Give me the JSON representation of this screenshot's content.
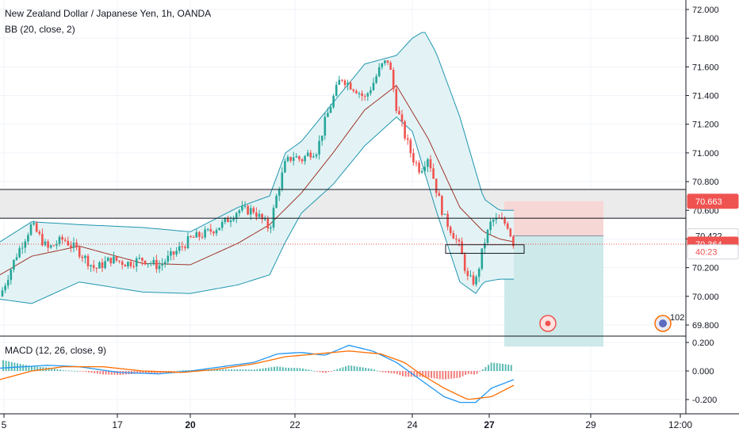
{
  "header": {
    "title": "New Zealand Dollar / Japanese Yen, 1h, OANDA",
    "indicator": "BB (20, close, 2)",
    "macd_label": "MACD (12, 26, close, 9)"
  },
  "colors": {
    "up": "#26a69a",
    "down": "#ef5350",
    "basis": "#a0352b",
    "band": "#2196b0",
    "band_fill": "#e3f3f5",
    "zone_fill": "#ebebeb",
    "short_stop_fill": "#f7d6d6",
    "short_target_fill": "#cde9e9",
    "macd_line": "#2196f3",
    "signal_line": "#ff6d00",
    "price_line": "#ef5350",
    "badge_red": "#ef5350",
    "badge_grey": "#8a8f9c"
  },
  "price_badges": [
    {
      "name": "stop-price-badge",
      "text": "70.663",
      "price": 70.663,
      "fill": "#ef5350",
      "color": "#ffffff"
    },
    {
      "name": "target-price-badge",
      "text": "70.422",
      "price": 70.422,
      "fill": "#ffffff",
      "color": "#131722"
    },
    {
      "name": "last-price-badge",
      "text": "70.364",
      "price": 70.364,
      "fill": "#ef5350",
      "color": "#ffffff"
    },
    {
      "name": "countdown-badge",
      "text": "40:23",
      "price": 70.31,
      "fill": "#ffffff",
      "color": "#ef5350"
    }
  ],
  "icon_label": "102",
  "chart_data": [
    {
      "type": "candlestick",
      "title": "New Zealand Dollar / Japanese Yen, 1h, OANDA",
      "indicator": "BB (20, close, 2)",
      "y_ticks": [
        "72.000",
        "71.800",
        "71.600",
        "71.400",
        "71.200",
        "71.000",
        "70.800",
        "70.600",
        "70.400",
        "70.200",
        "70.000",
        "69.800"
      ],
      "ylim": [
        69.64,
        72.05
      ],
      "x_ticks": [
        "5",
        "17",
        "20",
        "22",
        "24",
        "27",
        "29",
        "12:00"
      ],
      "last_price": 70.364,
      "series": [
        {
          "name": "price",
          "x": [
            0,
            20,
            40,
            60,
            80,
            100,
            120,
            140,
            160,
            180,
            200,
            220,
            240,
            260,
            280,
            300,
            320,
            340,
            350,
            360,
            370,
            380,
            390,
            400,
            410,
            420,
            430,
            440,
            450,
            460,
            470,
            480,
            490,
            500,
            510,
            520,
            530,
            540,
            550,
            560,
            570,
            580,
            590,
            600,
            610,
            620,
            630,
            640,
            648
          ],
          "values": [
            70.0,
            70.28,
            70.5,
            70.33,
            70.4,
            70.31,
            70.19,
            70.26,
            70.23,
            70.26,
            70.21,
            70.3,
            70.4,
            70.44,
            70.5,
            70.6,
            70.6,
            70.47,
            70.73,
            70.93,
            70.98,
            70.95,
            71.0,
            71.02,
            71.22,
            71.38,
            71.53,
            71.48,
            71.44,
            71.38,
            71.48,
            71.6,
            71.65,
            71.32,
            71.13,
            70.97,
            70.88,
            70.98,
            70.75,
            70.55,
            70.45,
            70.34,
            70.12,
            70.1,
            70.36,
            70.53,
            70.53,
            70.5,
            70.364
          ]
        },
        {
          "name": "basis",
          "x": [
            0,
            40,
            100,
            180,
            240,
            300,
            340,
            380,
            420,
            460,
            500,
            540,
            580,
            610,
            630,
            648
          ],
          "values": [
            70.15,
            70.28,
            70.35,
            70.23,
            70.22,
            70.37,
            70.5,
            70.72,
            71.0,
            71.3,
            71.47,
            71.1,
            70.62,
            70.45,
            70.4,
            70.38
          ]
        },
        {
          "name": "upper",
          "x": [
            0,
            40,
            100,
            180,
            240,
            300,
            340,
            360,
            380,
            420,
            460,
            500,
            520,
            535,
            550,
            580,
            610,
            630,
            648
          ],
          "values": [
            70.38,
            70.52,
            70.5,
            70.48,
            70.45,
            70.62,
            70.7,
            71.0,
            71.08,
            71.35,
            71.62,
            71.68,
            71.8,
            71.85,
            71.7,
            71.25,
            70.68,
            70.6,
            70.6
          ]
        },
        {
          "name": "lower",
          "x": [
            0,
            40,
            100,
            180,
            240,
            300,
            340,
            360,
            380,
            420,
            460,
            500,
            520,
            550,
            580,
            600,
            610,
            630,
            648
          ],
          "values": [
            69.98,
            69.95,
            70.1,
            70.03,
            70.02,
            70.08,
            70.15,
            70.38,
            70.58,
            70.78,
            71.05,
            71.25,
            71.15,
            70.6,
            70.1,
            70.02,
            70.1,
            70.12,
            70.12
          ]
        }
      ],
      "zones": [
        {
          "name": "resistance-zone",
          "y_from": 70.545,
          "y_to": 70.745
        },
        {
          "name": "support-box",
          "y_from": 70.3,
          "y_to": 70.36
        },
        {
          "name": "short-stop-zone",
          "y_from": 70.422,
          "y_to": 70.663
        },
        {
          "name": "short-target-zone",
          "y_from": 69.65,
          "y_to": 70.422
        }
      ]
    },
    {
      "type": "line",
      "title": "MACD (12, 26, close, 9)",
      "y_ticks": [
        "0.200",
        "0.000",
        "-0.200"
      ],
      "ylim": [
        -0.28,
        0.26
      ],
      "series": [
        {
          "name": "macd",
          "x": [
            0,
            30,
            60,
            100,
            150,
            200,
            240,
            280,
            320,
            350,
            380,
            410,
            440,
            470,
            500,
            520,
            540,
            560,
            580,
            600,
            620,
            648
          ],
          "values": [
            0.02,
            0.03,
            0.04,
            0.03,
            -0.01,
            -0.02,
            0.0,
            0.03,
            0.06,
            0.12,
            0.13,
            0.11,
            0.18,
            0.14,
            0.06,
            -0.02,
            -0.1,
            -0.18,
            -0.22,
            -0.22,
            -0.12,
            -0.06
          ]
        },
        {
          "name": "signal",
          "x": [
            0,
            40,
            80,
            130,
            180,
            230,
            270,
            320,
            360,
            400,
            440,
            480,
            510,
            530,
            560,
            590,
            620,
            648
          ],
          "values": [
            -0.06,
            0.0,
            0.03,
            0.03,
            0.0,
            -0.01,
            0.01,
            0.05,
            0.1,
            0.12,
            0.14,
            0.12,
            0.06,
            -0.02,
            -0.12,
            -0.2,
            -0.18,
            -0.1
          ]
        }
      ]
    }
  ]
}
